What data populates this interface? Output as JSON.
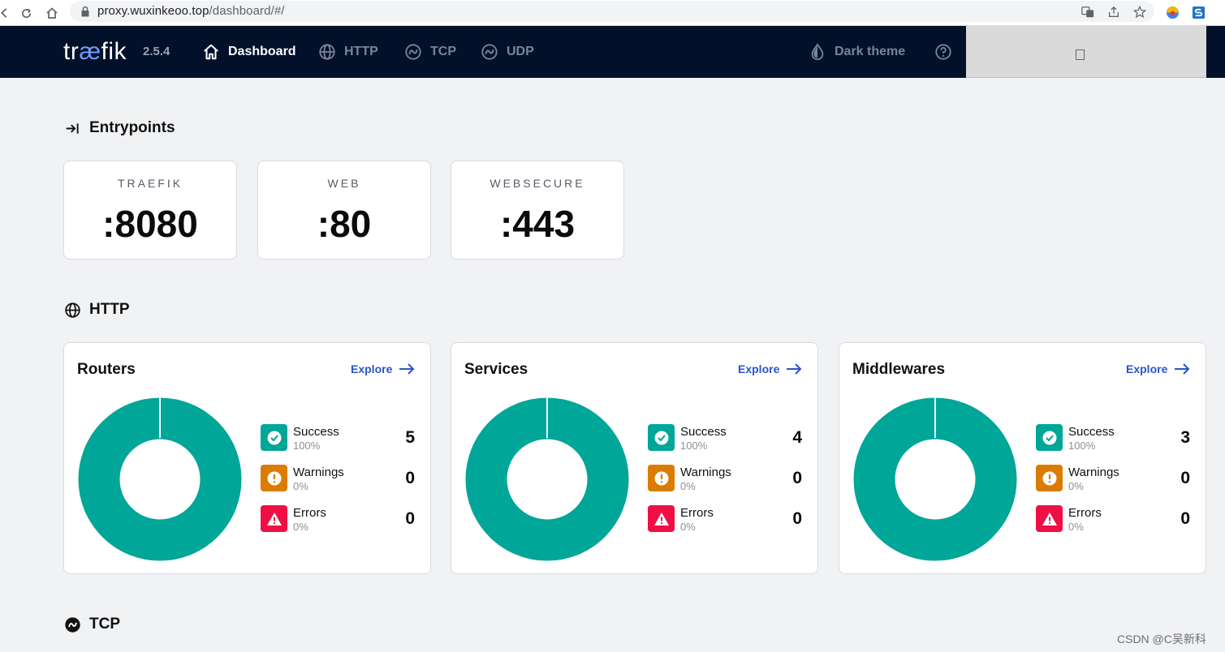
{
  "browser": {
    "url_host": "proxy.wuxinkeoo.top",
    "url_path": "/dashboard/#/"
  },
  "header": {
    "logo": {
      "pre": "tr",
      "ae": "æ",
      "post": "fik"
    },
    "version": "2.5.4",
    "nav": [
      {
        "label": "Dashboard",
        "icon": "home-icon",
        "active": true
      },
      {
        "label": "HTTP",
        "icon": "globe-icon",
        "active": false
      },
      {
        "label": "TCP",
        "icon": "tcp-icon",
        "active": false
      },
      {
        "label": "UDP",
        "icon": "udp-icon",
        "active": false
      }
    ],
    "theme_label": "Dark theme",
    "help_icon": "help-circle-icon"
  },
  "entrypoints": {
    "title": "Entrypoints",
    "items": [
      {
        "name": "TRAEFIK",
        "port": ":8080"
      },
      {
        "name": "WEB",
        "port": ":80"
      },
      {
        "name": "WEBSECURE",
        "port": ":443"
      }
    ]
  },
  "http": {
    "title": "HTTP",
    "explore_label": "Explore",
    "cards": [
      {
        "title": "Routers",
        "success": {
          "label": "Success",
          "pct": "100%",
          "count": "5"
        },
        "warnings": {
          "label": "Warnings",
          "pct": "0%",
          "count": "0"
        },
        "errors": {
          "label": "Errors",
          "pct": "0%",
          "count": "0"
        }
      },
      {
        "title": "Services",
        "success": {
          "label": "Success",
          "pct": "100%",
          "count": "4"
        },
        "warnings": {
          "label": "Warnings",
          "pct": "0%",
          "count": "0"
        },
        "errors": {
          "label": "Errors",
          "pct": "0%",
          "count": "0"
        }
      },
      {
        "title": "Middlewares",
        "success": {
          "label": "Success",
          "pct": "100%",
          "count": "3"
        },
        "warnings": {
          "label": "Warnings",
          "pct": "0%",
          "count": "0"
        },
        "errors": {
          "label": "Errors",
          "pct": "0%",
          "count": "0"
        }
      }
    ]
  },
  "tcp": {
    "title": "TCP"
  },
  "colors": {
    "success": "#00a697",
    "warning": "#db7c00",
    "error": "#f00f45",
    "header_bg": "#03102a",
    "accent_link": "#2b55c9"
  },
  "watermark": "CSDN @C吴新科"
}
